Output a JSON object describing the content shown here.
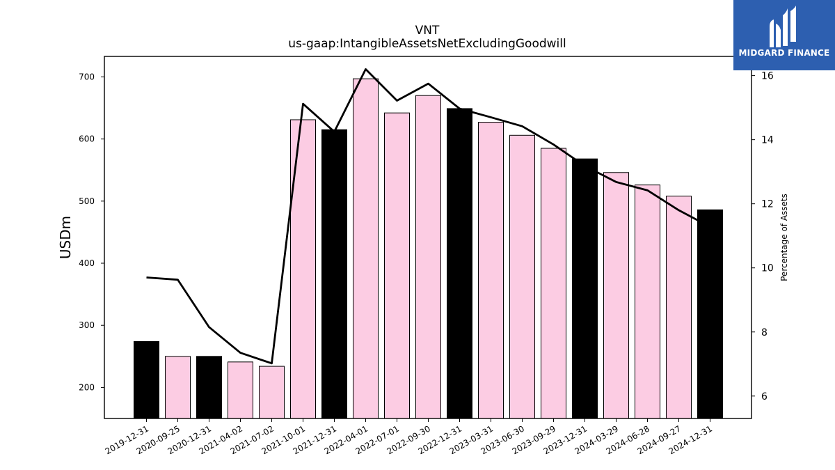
{
  "brand": {
    "name": "MIDGARD FINANCE",
    "colors": {
      "background": "#2d5fb0",
      "text": "#ffffff"
    }
  },
  "chart_data": {
    "type": "bar",
    "title": "VNT",
    "subtitle": "us-gaap:IntangibleAssetsNetExcludingGoodwill",
    "ylabel": "USDm",
    "y2label": "Percentage of Assets",
    "ylim": [
      150,
      733
    ],
    "y2lim": [
      5.3,
      16.6
    ],
    "yticks": [
      200,
      300,
      400,
      500,
      600,
      700
    ],
    "y2ticks": [
      6,
      8,
      10,
      12,
      14,
      16
    ],
    "categories": [
      "2019-12-31",
      "2020-09-25",
      "2020-12-31",
      "2021-04-02",
      "2021-07-02",
      "2021-10-01",
      "2021-12-31",
      "2022-04-01",
      "2022-07-01",
      "2022-09-30",
      "2022-12-31",
      "2023-03-31",
      "2023-06-30",
      "2023-09-29",
      "2023-12-31",
      "2024-03-29",
      "2024-06-28",
      "2024-09-27",
      "2024-12-31"
    ],
    "series": [
      {
        "type": "bar",
        "values": [
          274,
          250,
          250,
          241,
          234,
          631,
          615,
          697,
          642,
          670,
          649,
          627,
          606,
          585,
          568,
          546,
          526,
          508,
          486
        ],
        "period": [
          "annual",
          "quarterly",
          "annual",
          "quarterly",
          "quarterly",
          "quarterly",
          "annual",
          "quarterly",
          "quarterly",
          "quarterly",
          "annual",
          "quarterly",
          "quarterly",
          "quarterly",
          "annual",
          "quarterly",
          "quarterly",
          "quarterly",
          "annual"
        ]
      },
      {
        "type": "line",
        "axis": "right",
        "values": [
          9.7,
          9.63,
          8.15,
          7.35,
          7.02,
          15.12,
          14.25,
          16.2,
          15.22,
          15.75,
          14.97,
          14.7,
          14.42,
          13.85,
          13.18,
          12.68,
          12.42,
          11.8,
          11.28
        ]
      }
    ],
    "colors": {
      "annual_bar": "#000000",
      "quarterly_bar": "#fccce3",
      "line": "#000000"
    },
    "grid": false,
    "legend": "none"
  }
}
